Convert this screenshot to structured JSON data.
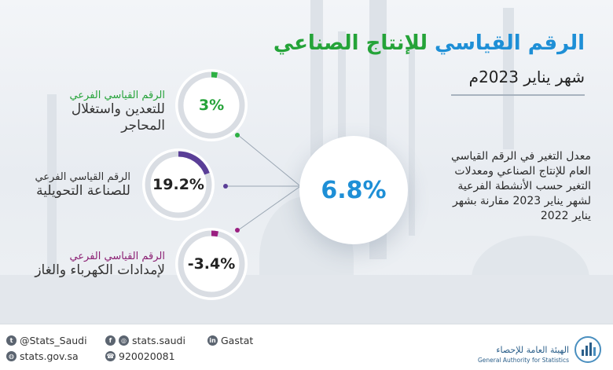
{
  "title": {
    "part_blue": "الرقم القياسي",
    "part_green": "للإنتاج الصناعي"
  },
  "subtitle": "شهر يناير  2023م",
  "main_value": "6.8%",
  "description": [
    "معدل التغير في الرقم القياسي",
    "العام للإنتاج الصناعي ومعدلات",
    "التغير حسب الأنشطة الفرعية",
    "لشهر يناير 2023 مقارنة بشهر",
    "يناير 2022"
  ],
  "sub_indices": [
    {
      "label_top": "الرقم القياسي الفرعي",
      "label_lines": [
        "للتعدين واستغلال",
        "المحاجر"
      ],
      "value": "3%",
      "percent": 3,
      "color": "#2db043"
    },
    {
      "label_top": "الرقم القياسي الفرعي",
      "label_lines": [
        "للصناعة التحويلية"
      ],
      "value": "19.2%",
      "percent": 19.2,
      "color": "#5a3e97"
    },
    {
      "label_top": "الرقم القياسي الفرعي",
      "label_lines": [
        "لإمدادات الكهرباء والغاز"
      ],
      "value": "-3.4%",
      "percent": -3.4,
      "color": "#9a1f80"
    }
  ],
  "footer": {
    "twitter": "@Stats_Saudi",
    "instagram": "stats.saudi",
    "linkedin": "Gastat",
    "website": "stats.gov.sa",
    "phone": "920020081",
    "org_name_ar": "الهيئة العامة للإحصاء",
    "org_name_en": "General Authority for Statistics"
  },
  "colors": {
    "accent_blue": "#1e8fd6",
    "accent_green": "#24a338",
    "ring_track": "#d9dde3"
  },
  "icons": [
    "twitter-icon",
    "facebook-icon",
    "instagram-icon",
    "linkedin-icon",
    "globe-icon",
    "phone-icon",
    "gastat-logo-icon"
  ]
}
